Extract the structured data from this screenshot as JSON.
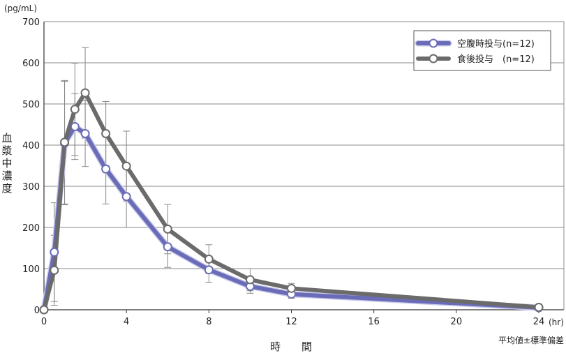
{
  "chart_data": {
    "type": "line",
    "title": "",
    "y_unit": "(pg/mL)",
    "ylabel": "血漿中濃度",
    "xlabel": "時　　間",
    "x_unit": "(hr)",
    "footnote": "平均値±標準偏差",
    "xlim": [
      0,
      24
    ],
    "ylim": [
      0,
      700
    ],
    "xticks": [
      0,
      4,
      8,
      12,
      16,
      20,
      24
    ],
    "yticks": [
      0,
      100,
      200,
      300,
      400,
      500,
      600,
      700
    ],
    "grid": "horizontal",
    "legend_position": "top-right",
    "series": [
      {
        "name": "空腹時投与(n=12)",
        "color": "#6a6cb8",
        "x": [
          0,
          0.5,
          1,
          1.5,
          2,
          3,
          4,
          6,
          8,
          10,
          12,
          24
        ],
        "y": [
          0,
          140,
          405,
          445,
          428,
          342,
          275,
          153,
          97,
          57,
          38,
          5
        ],
        "error": [
          0,
          120,
          150,
          80,
          80,
          85,
          75,
          50,
          30,
          17,
          10,
          2
        ]
      },
      {
        "name": "食後投与　(n=12)",
        "color": "#6b6b6b",
        "x": [
          0,
          0.5,
          1,
          1.5,
          2,
          3,
          4,
          6,
          8,
          10,
          12,
          24
        ],
        "y": [
          0,
          96,
          407,
          487,
          527,
          428,
          349,
          196,
          123,
          73,
          52,
          6
        ],
        "error": [
          0,
          85,
          150,
          112,
          110,
          78,
          85,
          60,
          35,
          27,
          12,
          2
        ]
      }
    ]
  }
}
